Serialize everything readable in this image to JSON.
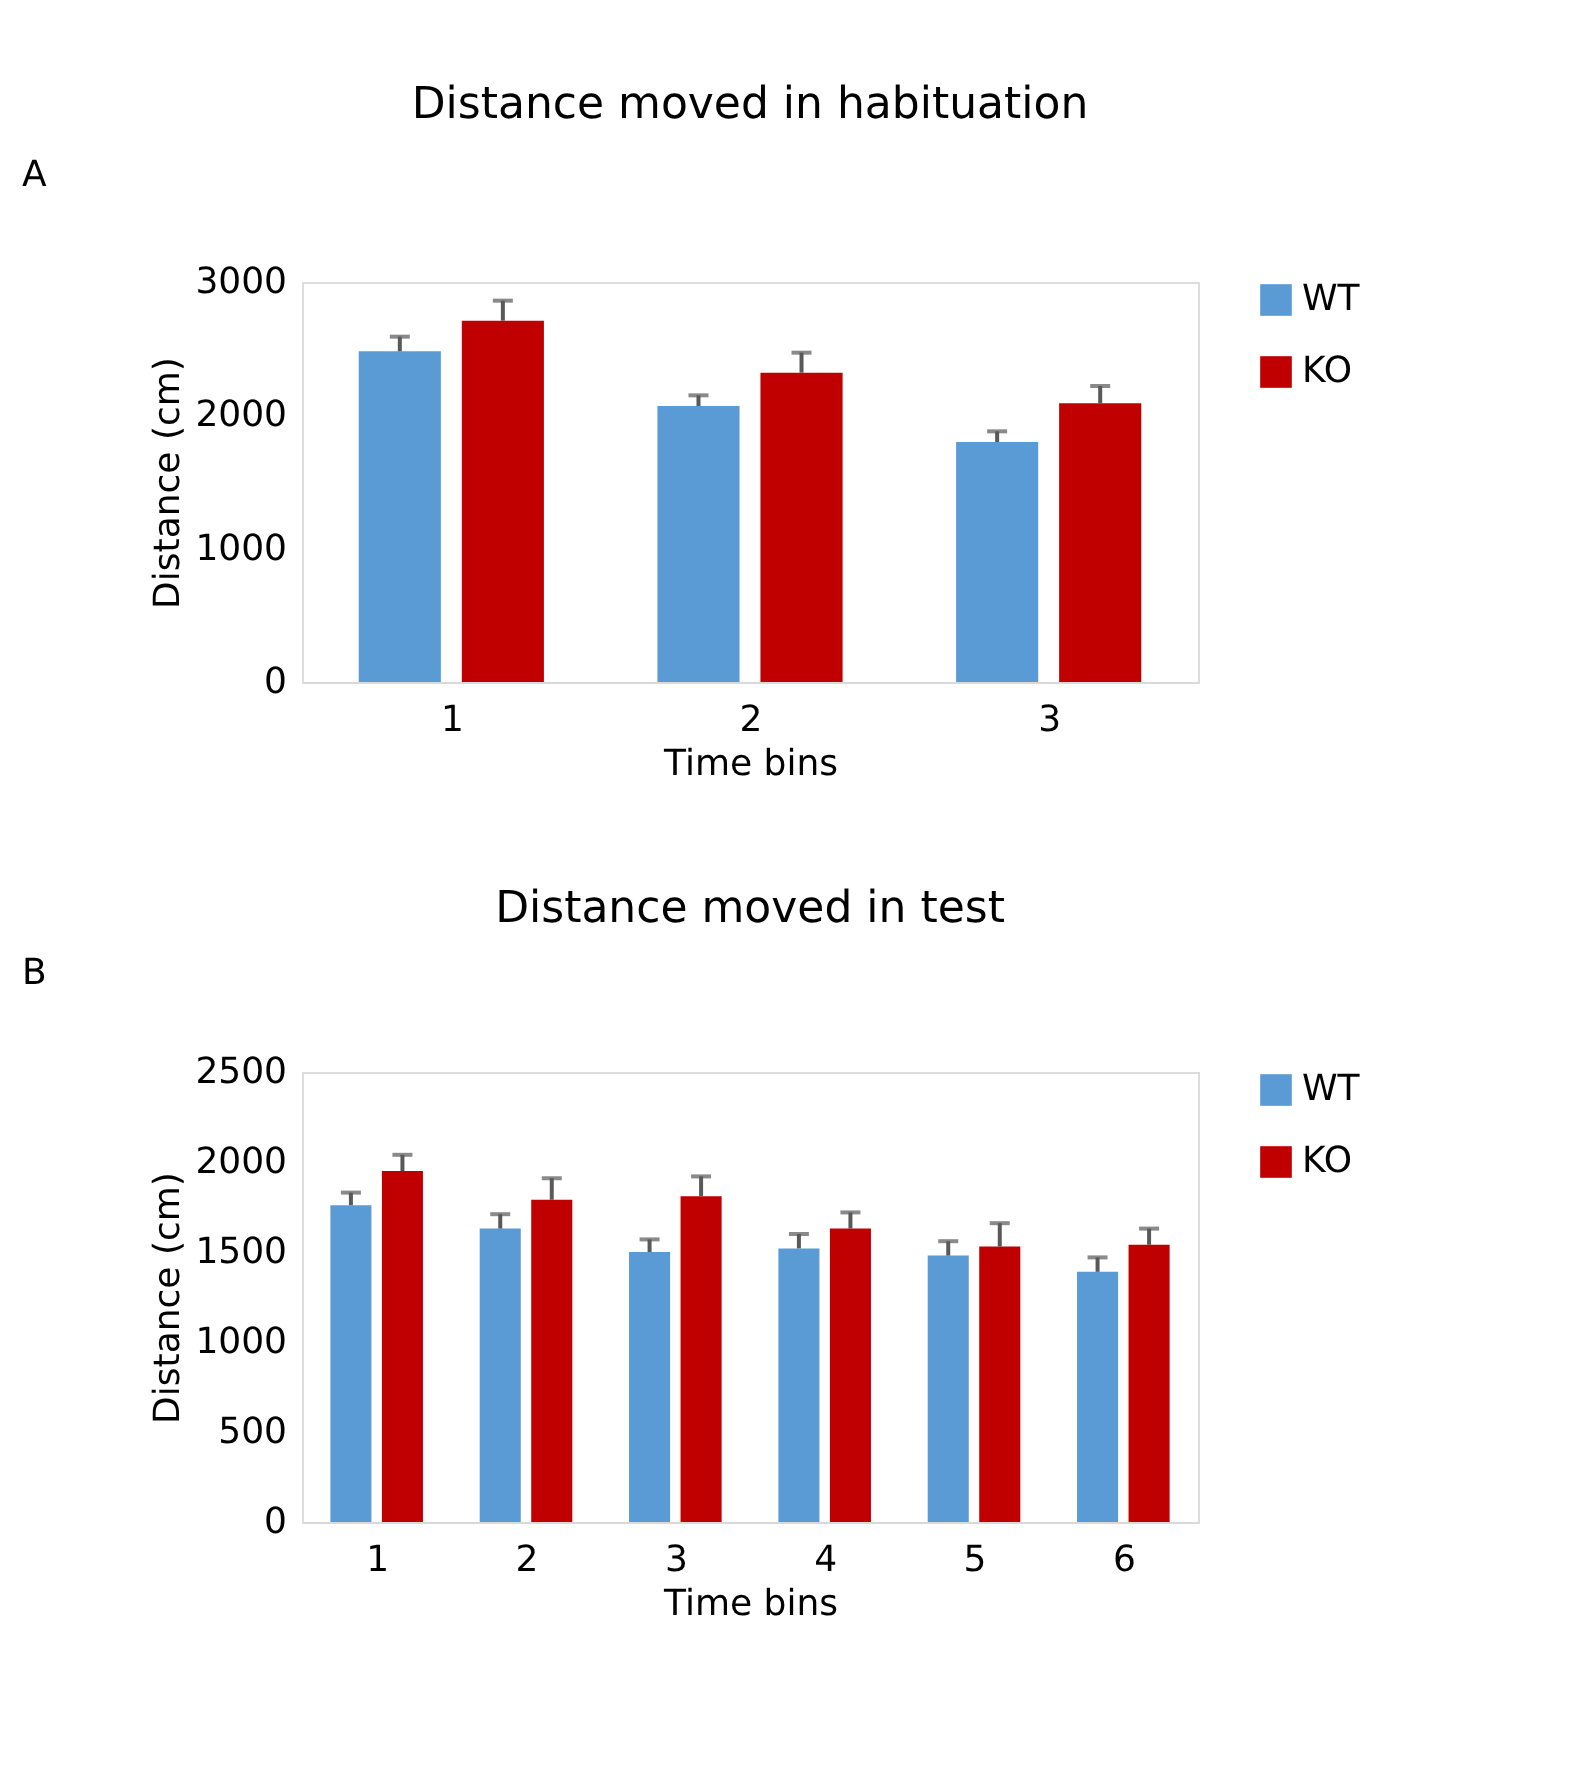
{
  "chart_data": [
    {
      "type": "bar",
      "title": "Distance moved in habituation",
      "xlabel": "Time bins",
      "ylabel": "Distance (cm)",
      "annotations": [
        "A"
      ],
      "categories": [
        "1",
        "2",
        "3"
      ],
      "series": [
        {
          "name": "WT",
          "color": "#5b9bd5",
          "values": [
            2480,
            2070,
            1800
          ],
          "errors": [
            [
              2480,
              2590
            ],
            [
              2070,
              2150
            ],
            [
              1800,
              1880
            ]
          ]
        },
        {
          "name": "KO",
          "color": "#c00000",
          "values": [
            2710,
            2320,
            2090
          ],
          "errors": [
            [
              2710,
              2860
            ],
            [
              2320,
              2470
            ],
            [
              2090,
              2220
            ]
          ]
        }
      ],
      "ylim": [
        0,
        3000
      ],
      "yticks": [
        0,
        {
          "value": 1000,
          "label": "1000"
        },
        {
          "value": 2000,
          "label": "2000"
        },
        {
          "value": 3000,
          "label": "3000"
        }
      ],
      "grid": false,
      "legend": "right"
    },
    {
      "type": "bar",
      "title": "Distance moved in test",
      "xlabel": "Time bins",
      "ylabel": "Distance (cm)",
      "annotations": [
        "B"
      ],
      "categories": [
        "1",
        "2",
        "3",
        "4",
        "5",
        "6"
      ],
      "series": [
        {
          "name": "WT",
          "color": "#5b9bd5",
          "values": [
            1760,
            1630,
            1500,
            1520,
            1480,
            1390
          ],
          "errors": [
            [
              1760,
              1830
            ],
            [
              1630,
              1710
            ],
            [
              1500,
              1570
            ],
            [
              1520,
              1600
            ],
            [
              1480,
              1560
            ],
            [
              1390,
              1470
            ]
          ]
        },
        {
          "name": "KO",
          "color": "#c00000",
          "values": [
            1950,
            1790,
            1810,
            1630,
            1530,
            1540
          ],
          "errors": [
            [
              1950,
              2040
            ],
            [
              1790,
              1910
            ],
            [
              1810,
              1920
            ],
            [
              1630,
              1720
            ],
            [
              1530,
              1660
            ],
            [
              1540,
              1630
            ]
          ]
        }
      ],
      "ylim": [
        0,
        2500
      ],
      "yticks": [
        0,
        500,
        {
          "value": 1000,
          "label": "1000"
        },
        {
          "value": 1500,
          "label": "1500"
        },
        {
          "value": 2000,
          "label": "2000"
        },
        {
          "value": 2500,
          "label": "2500"
        }
      ],
      "grid": false,
      "legend": "right"
    }
  ]
}
